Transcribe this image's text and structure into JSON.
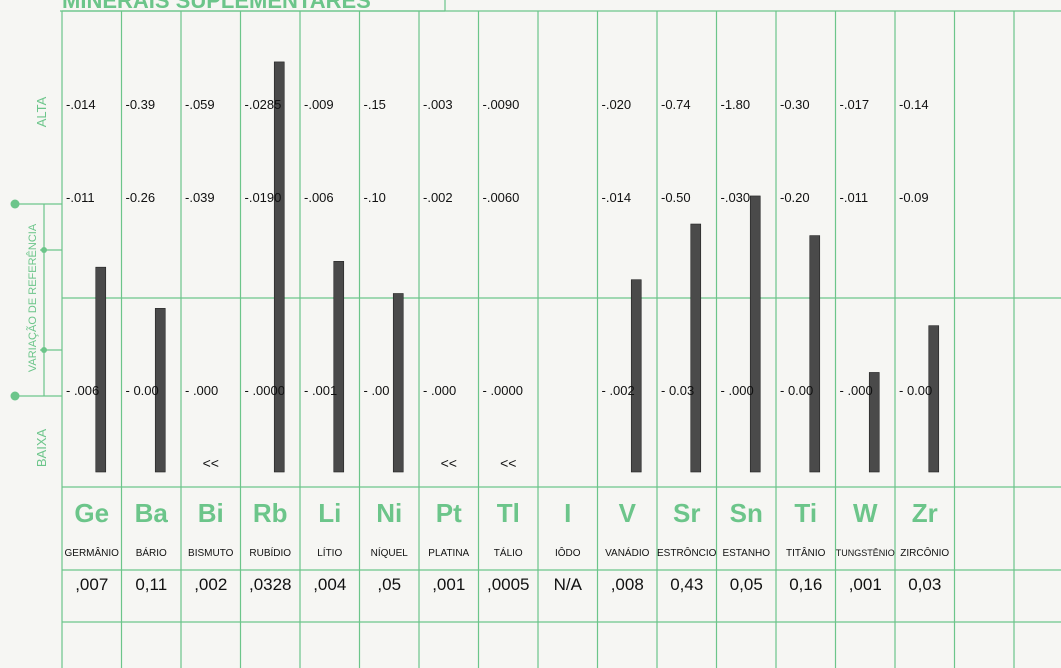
{
  "title_fragment": "MINERAIS SUPLEMENTARES",
  "axis": {
    "high": "ALTA",
    "reference": "VARIAÇÃO DE REFERÊNCIA",
    "low": "BAIXA"
  },
  "chart_data": {
    "type": "bar",
    "title": "MINERAIS SUPLEMENTARES",
    "ylabel": "VARIAÇÃO DE REFERÊNCIA",
    "categories": [
      "Ge",
      "Ba",
      "Bi",
      "Rb",
      "Li",
      "Ni",
      "Pt",
      "Tl",
      "I",
      "V",
      "Sr",
      "Sn",
      "Ti",
      "W",
      "Zr"
    ],
    "elements": [
      {
        "symbol": "Ge",
        "name": "GERMÂNIO",
        "value": ",007",
        "num": 0.007,
        "alta": ".014",
        "ref": ".011",
        "baixa": "- .006",
        "bar": [
          0.7,
          0.2
        ],
        "below": false
      },
      {
        "symbol": "Ba",
        "name": "BÁRIO",
        "value": "0,11",
        "num": 0.11,
        "alta": "0.39",
        "ref": "0.26",
        "baixa": "- 0.00",
        "bar": [
          0.7,
          0.01
        ],
        "below": false
      },
      {
        "symbol": "Bi",
        "name": "BISMUTO",
        "value": ",002",
        "num": 0.002,
        "alta": ".059",
        "ref": ".039",
        "baixa": "- .000",
        "bar": null,
        "below": true
      },
      {
        "symbol": "Rb",
        "name": "RUBÍDIO",
        "value": ",0328",
        "num": 0.0328,
        "alta": ".0285",
        "ref": ".0190",
        "baixa": "- .0000",
        "bar": [
          1.3,
          0.62
        ],
        "below": false
      },
      {
        "symbol": "Li",
        "name": "LÍTIO",
        "value": ",004",
        "num": 0.004,
        "alta": ".009",
        "ref": ".006",
        "baixa": "- .001",
        "bar": [
          0.33,
          0.58
        ],
        "below": false
      },
      {
        "symbol": "Ni",
        "name": "NÍQUEL",
        "value": ",05",
        "num": 0.05,
        "alta": ".15",
        "ref": ".10",
        "baixa": "- .00",
        "bar": [
          0.33,
          0.25
        ],
        "below": false
      },
      {
        "symbol": "Pt",
        "name": "PLATINA",
        "value": ",001",
        "num": 0.001,
        "alta": ".003",
        "ref": ".002",
        "baixa": "- .000",
        "bar": null,
        "below": true
      },
      {
        "symbol": "Tl",
        "name": "TÁLIO",
        "value": ",0005",
        "num": 0.0005,
        "alta": ".0090",
        "ref": ".0060",
        "baixa": "- .0000",
        "bar": null,
        "below": true
      },
      {
        "symbol": "I",
        "name": "IÔDO",
        "value": "N/A",
        "num": null,
        "alta": "",
        "ref": "",
        "baixa": "",
        "bar": null,
        "below": false
      },
      {
        "symbol": "V",
        "name": "VANÁDIO",
        "value": ",008",
        "num": 0.008,
        "alta": ".020",
        "ref": ".014",
        "baixa": "- .002",
        "bar": [
          0.67,
          0.35
        ],
        "below": false
      },
      {
        "symbol": "Sr",
        "name": "ESTRÔNCIO",
        "value": "0,43",
        "num": 0.43,
        "alta": "0.74",
        "ref": "0.50",
        "baixa": "- 0.03",
        "bar": [
          0.67,
          0.62
        ],
        "below": false
      },
      {
        "symbol": "Sn",
        "name": "ESTANHO",
        "value": "0,05",
        "num": 0.05,
        "alta": "1.80",
        "ref": ".030",
        "baixa": "- .000",
        "bar": [
          1.3,
          0.47
        ],
        "below": false
      },
      {
        "symbol": "Ti",
        "name": "TITÂNIO",
        "value": "0,16",
        "num": 0.16,
        "alta": "0.30",
        "ref": "0.20",
        "baixa": "- 0.00",
        "bar": [
          0.67,
          0.5
        ],
        "below": false
      },
      {
        "symbol": "W",
        "name": "TUNGSTÊNIO",
        "value": ",001",
        "num": 0.001,
        "alta": ".017",
        "ref": ".011",
        "baixa": "- .000",
        "bar": [
          0.2,
          0.33
        ],
        "below": false
      },
      {
        "symbol": "Zr",
        "name": "ZIRCÔNIO",
        "value": "0,03",
        "num": 0.03,
        "alta": "0.14",
        "ref": "0.09",
        "baixa": "- 0.00",
        "bar": [
          0.33,
          0.25
        ],
        "below": false
      }
    ],
    "below_range_marker": "<<",
    "grid": true
  }
}
